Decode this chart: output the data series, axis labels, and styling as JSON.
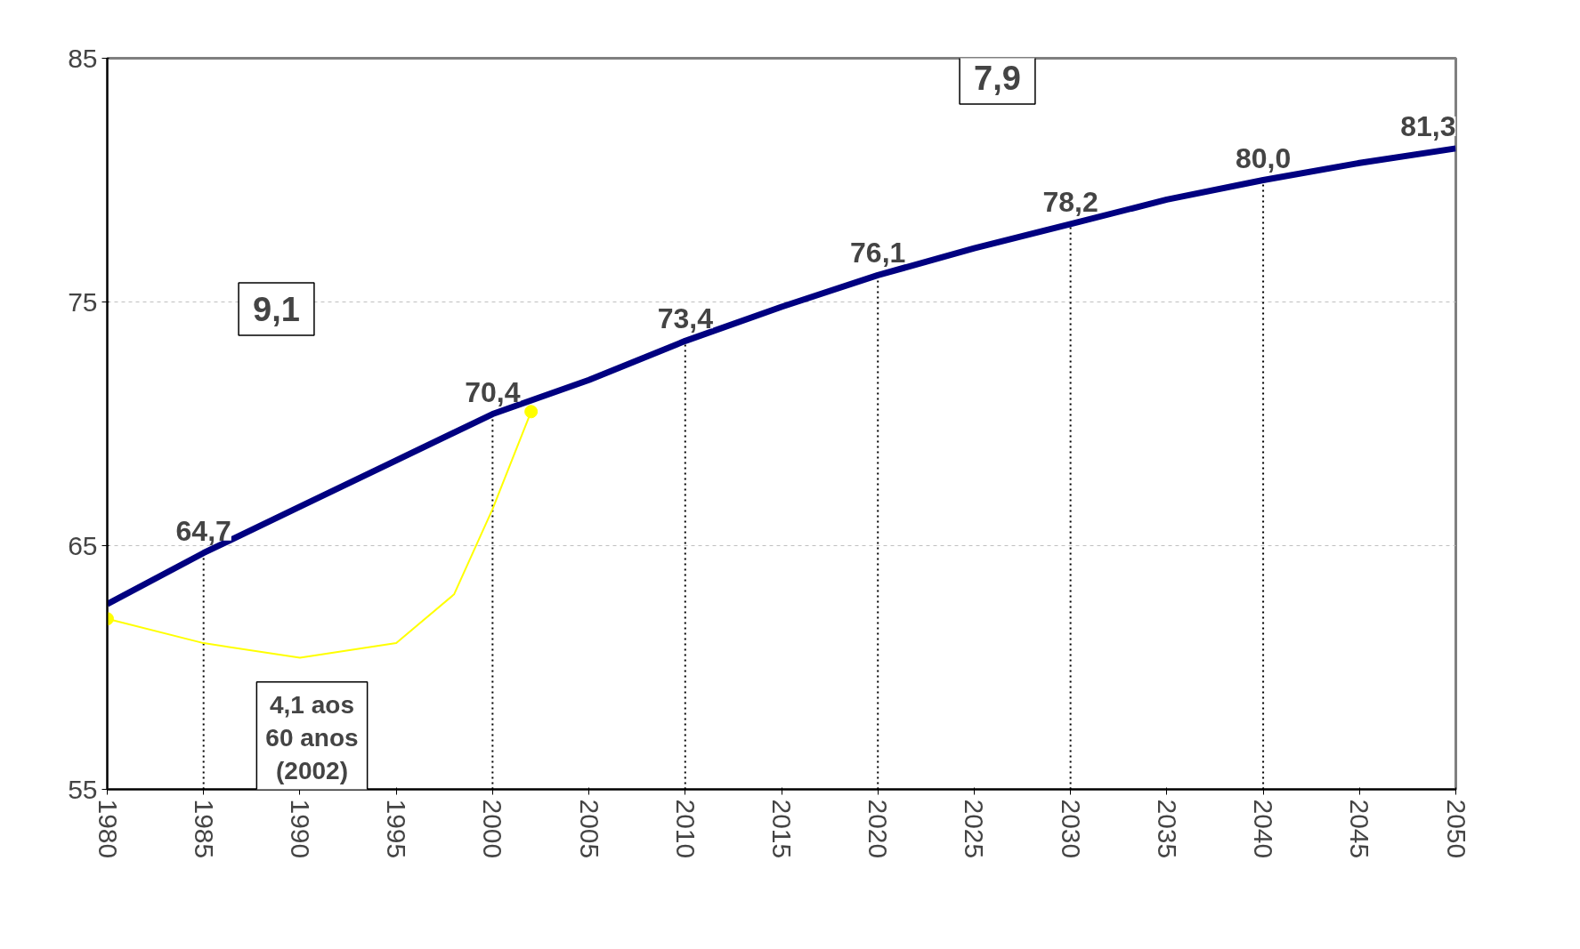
{
  "chart_data": {
    "type": "line",
    "x": [
      1980,
      1985,
      1990,
      1995,
      2000,
      2005,
      2010,
      2015,
      2020,
      2025,
      2030,
      2035,
      2040,
      2045,
      2050
    ],
    "series": [
      {
        "color": "#000080",
        "values": [
          62.6,
          64.7,
          66.6,
          68.5,
          70.4,
          71.8,
          73.4,
          74.8,
          76.1,
          77.2,
          78.2,
          79.2,
          80.0,
          80.7,
          81.3
        ],
        "value_labels": [
          null,
          "64,7",
          null,
          null,
          "70,4",
          null,
          "73,4",
          null,
          "76,1",
          null,
          "78,2",
          null,
          "80,0",
          null,
          "81,3"
        ]
      },
      {
        "color": "#ffff00",
        "x": [
          1980,
          1985,
          1990,
          1995,
          1998,
          2000,
          2002
        ],
        "values": [
          62.0,
          61.0,
          60.4,
          61.0,
          63.0,
          66.5,
          70.5
        ]
      }
    ],
    "xlim": [
      1980,
      2050
    ],
    "xticks": [
      1980,
      1985,
      1990,
      1995,
      2000,
      2005,
      2010,
      2015,
      2020,
      2025,
      2030,
      2035,
      2040,
      2045,
      2050
    ],
    "ylim": [
      55,
      85
    ],
    "yticks": [
      55,
      65,
      75,
      85
    ],
    "grid": "y",
    "marker": "none",
    "ref_lines": [
      {
        "axis": "x",
        "value": 1985,
        "line_style": "dotted"
      },
      {
        "axis": "x",
        "value": 2000,
        "line_style": "dotted"
      },
      {
        "axis": "x",
        "value": 2010,
        "line_style": "dotted"
      },
      {
        "axis": "x",
        "value": 2020,
        "line_style": "dotted"
      },
      {
        "axis": "x",
        "value": 2030,
        "line_style": "dotted"
      },
      {
        "axis": "x",
        "value": 2040,
        "line_style": "dotted"
      }
    ],
    "annotations": [
      "9,1",
      "7,9",
      "4,1 aos\n60 anos\n(2002)"
    ]
  }
}
